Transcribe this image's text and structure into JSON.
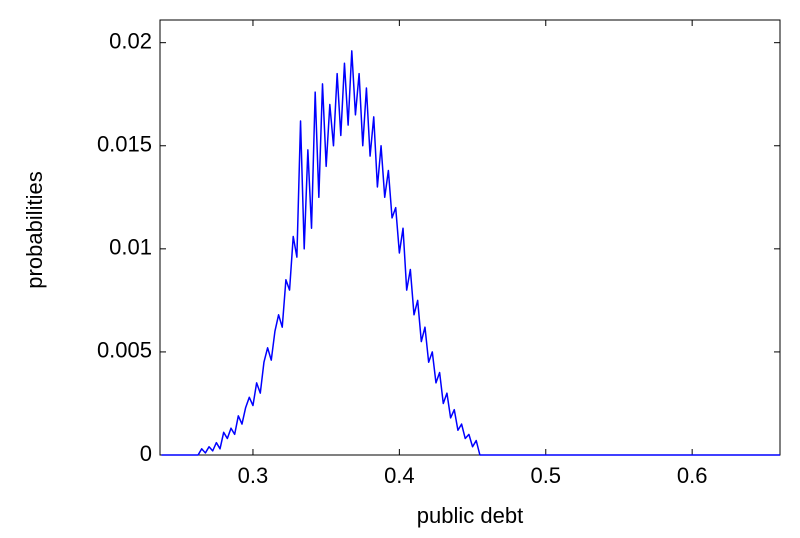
{
  "chart_data": {
    "type": "line",
    "x_label": "public debt",
    "y_label": "probabilities",
    "x": [
      0.2375,
      0.2625,
      0.265,
      0.2675,
      0.27,
      0.2725,
      0.275,
      0.2775,
      0.28,
      0.2825,
      0.285,
      0.2875,
      0.29,
      0.2925,
      0.295,
      0.2975,
      0.3,
      0.3025,
      0.305,
      0.3075,
      0.31,
      0.3125,
      0.315,
      0.3175,
      0.32,
      0.3225,
      0.325,
      0.3275,
      0.33,
      0.3325,
      0.335,
      0.3375,
      0.34,
      0.3425,
      0.345,
      0.3475,
      0.35,
      0.3525,
      0.355,
      0.3575,
      0.36,
      0.3625,
      0.365,
      0.3675,
      0.37,
      0.3725,
      0.375,
      0.3775,
      0.38,
      0.3825,
      0.385,
      0.3875,
      0.39,
      0.3925,
      0.395,
      0.3975,
      0.4,
      0.4025,
      0.405,
      0.4075,
      0.41,
      0.4125,
      0.415,
      0.4175,
      0.42,
      0.4225,
      0.425,
      0.4275,
      0.43,
      0.4325,
      0.435,
      0.4375,
      0.44,
      0.4425,
      0.445,
      0.4475,
      0.45,
      0.4525,
      0.455,
      0.66
    ],
    "series": [
      {
        "color": "#0000ff",
        "values": [
          0,
          0,
          0.0003,
          0.0001,
          0.0004,
          0.0002,
          0.0006,
          0.0003,
          0.0011,
          0.0008,
          0.0013,
          0.001,
          0.0019,
          0.0015,
          0.0023,
          0.0028,
          0.0024,
          0.0035,
          0.003,
          0.0045,
          0.0052,
          0.0046,
          0.006,
          0.0068,
          0.0062,
          0.0085,
          0.008,
          0.0106,
          0.0096,
          0.0162,
          0.01,
          0.0148,
          0.011,
          0.0176,
          0.0125,
          0.018,
          0.014,
          0.017,
          0.015,
          0.0185,
          0.0155,
          0.019,
          0.016,
          0.0196,
          0.0165,
          0.0185,
          0.015,
          0.0178,
          0.0145,
          0.0164,
          0.013,
          0.015,
          0.0125,
          0.0138,
          0.0115,
          0.012,
          0.0098,
          0.011,
          0.008,
          0.009,
          0.0068,
          0.0075,
          0.0055,
          0.0062,
          0.0045,
          0.005,
          0.0035,
          0.004,
          0.0025,
          0.003,
          0.0018,
          0.0022,
          0.0012,
          0.0015,
          0.0008,
          0.001,
          0.0004,
          0.0007,
          0,
          0
        ]
      }
    ],
    "xlim": [
      0.2365,
      0.66
    ],
    "ylim": [
      0,
      0.0211
    ],
    "xticks": [
      0.3,
      0.4,
      0.5,
      0.6
    ],
    "yticks": [
      0,
      0.005,
      0.01,
      0.015,
      0.02
    ]
  }
}
